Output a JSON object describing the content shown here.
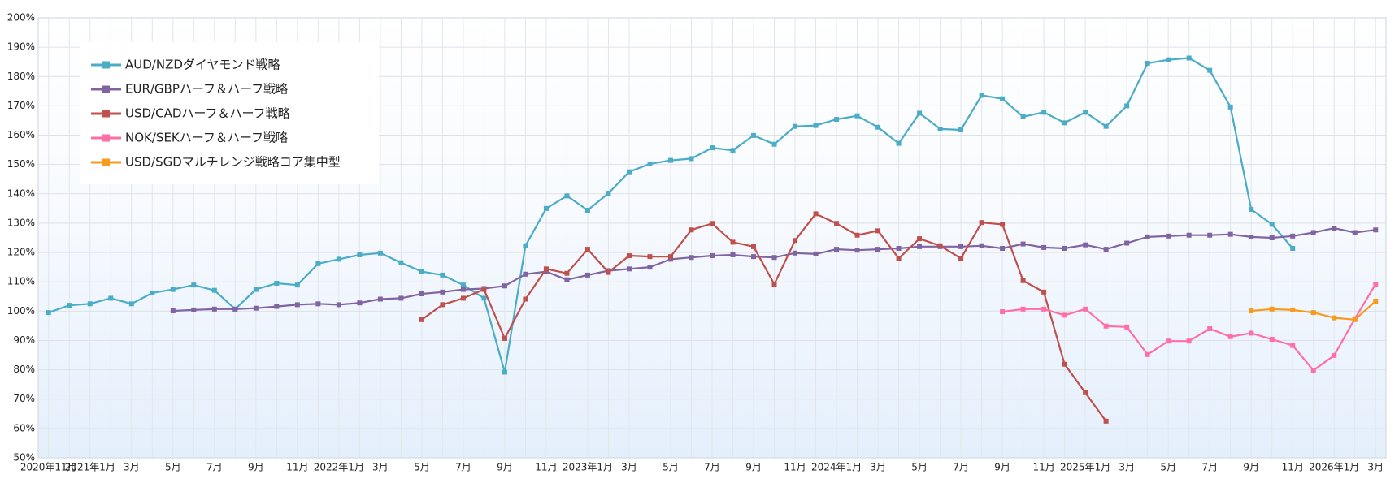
{
  "chart_data": {
    "type": "line",
    "categories": [
      "2020年11月",
      null,
      "2021年1月",
      null,
      "3月",
      null,
      "5月",
      null,
      "7月",
      null,
      "9月",
      null,
      "11月",
      null,
      "2022年1月",
      null,
      "3月",
      null,
      "5月",
      null,
      "7月",
      null,
      "9月",
      null,
      "11月",
      null,
      "2023年1月",
      null,
      "3月",
      null,
      "5月",
      null,
      "7月",
      null,
      "9月",
      null,
      "11月",
      null,
      "2024年1月",
      null,
      "3月",
      null,
      "5月",
      null,
      "7月",
      null,
      "9月",
      null,
      "11月",
      null,
      "2025年1月",
      null,
      "3月",
      null,
      "5月",
      null,
      "7月",
      null,
      "9月",
      null,
      "11月",
      null,
      "2026年1月",
      null,
      "3月"
    ],
    "series": [
      {
        "name": "AUD/NZDダイヤモンド戦略",
        "color": "#4bacc6",
        "values": [
          99.5,
          102,
          102.5,
          104.4,
          102.5,
          106.2,
          107.4,
          108.9,
          107.1,
          100.7,
          107.4,
          109.5,
          108.9,
          116.2,
          117.7,
          119.2,
          119.8,
          116.5,
          113.5,
          112.3,
          108.9,
          104.4,
          79.2,
          122.3,
          135,
          139.3,
          134.4,
          140.2,
          147.5,
          150.2,
          151.4,
          152,
          155.7,
          154.8,
          159.9,
          156.9,
          163,
          163.3,
          165.4,
          166.6,
          162.7,
          157.2,
          167.5,
          162.1,
          161.8,
          173.6,
          172.4,
          166.3,
          167.8,
          164.2,
          167.8,
          163,
          170,
          184.5,
          185.7,
          186.3,
          182.1,
          169.6,
          134.7,
          129.6,
          121.4,
          null,
          null,
          null,
          null
        ]
      },
      {
        "name": "EUR/GBPハーフ＆ハーフ戦略",
        "color": "#8064a2",
        "values": [
          null,
          null,
          null,
          null,
          null,
          null,
          100.1,
          100.4,
          100.7,
          100.7,
          101,
          101.6,
          102.2,
          102.5,
          102.2,
          102.8,
          104.1,
          104.4,
          105.9,
          106.5,
          107.4,
          107.7,
          108.6,
          112.6,
          113.5,
          110.7,
          112.3,
          113.8,
          114.4,
          115,
          117.7,
          118.3,
          118.9,
          119.2,
          118.6,
          118.3,
          119.8,
          119.5,
          121.1,
          120.8,
          121.1,
          121.4,
          122,
          122,
          122,
          122.3,
          121.4,
          122.9,
          121.7,
          121.4,
          122.6,
          121.1,
          123.2,
          125.3,
          125.6,
          125.9,
          125.9,
          126.2,
          125.3,
          125,
          125.6,
          126.8,
          128.3,
          126.8,
          127.7
        ]
      },
      {
        "name": "USD/CADハーフ＆ハーフ戦略",
        "color": "#c0504d",
        "values": [
          null,
          null,
          null,
          null,
          null,
          null,
          null,
          null,
          null,
          null,
          null,
          null,
          null,
          null,
          null,
          null,
          null,
          null,
          97.1,
          102.2,
          104.4,
          107.4,
          90.7,
          104.1,
          114.4,
          112.9,
          121.1,
          113.2,
          118.9,
          118.6,
          118.6,
          127.7,
          129.9,
          123.5,
          122,
          109.2,
          124.1,
          133.2,
          129.9,
          125.9,
          127.4,
          118,
          124.7,
          122.3,
          118,
          130.2,
          129.6,
          110.4,
          106.5,
          81.9,
          72.2,
          62.5,
          null,
          null,
          null,
          null,
          null,
          null,
          null,
          null,
          null,
          null,
          null,
          null,
          null
        ]
      },
      {
        "name": "NOK/SEKハーフ＆ハーフ戦略",
        "color": "#ff6ea5",
        "values": [
          null,
          null,
          null,
          null,
          null,
          null,
          null,
          null,
          null,
          null,
          null,
          null,
          null,
          null,
          null,
          null,
          null,
          null,
          null,
          null,
          null,
          null,
          null,
          null,
          null,
          null,
          null,
          null,
          null,
          null,
          null,
          null,
          null,
          null,
          null,
          null,
          null,
          null,
          null,
          null,
          null,
          null,
          null,
          null,
          null,
          null,
          99.8,
          100.7,
          100.7,
          98.6,
          100.7,
          94.9,
          94.6,
          85.2,
          89.8,
          89.8,
          94,
          91.3,
          92.5,
          90.4,
          88.3,
          79.8,
          84.9,
          97.4,
          109.2
        ]
      },
      {
        "name": "USD/SGDマルチレンジ戦略コア集中型",
        "color": "#f79a1e",
        "values": [
          null,
          null,
          null,
          null,
          null,
          null,
          null,
          null,
          null,
          null,
          null,
          null,
          null,
          null,
          null,
          null,
          null,
          null,
          null,
          null,
          null,
          null,
          null,
          null,
          null,
          null,
          null,
          null,
          null,
          null,
          null,
          null,
          null,
          null,
          null,
          null,
          null,
          null,
          null,
          null,
          null,
          null,
          null,
          null,
          null,
          null,
          null,
          null,
          null,
          null,
          null,
          null,
          null,
          null,
          null,
          null,
          null,
          null,
          100.1,
          100.7,
          100.4,
          99.5,
          97.7,
          97.1,
          103.4
        ]
      }
    ],
    "ylim": [
      50,
      200
    ],
    "yticks": [
      {
        "value": 50,
        "label": "50%"
      },
      {
        "value": 60,
        "label": "60%"
      },
      {
        "value": 70,
        "label": "70%"
      },
      {
        "value": 80,
        "label": "80%"
      },
      {
        "value": 90,
        "label": "90%"
      },
      {
        "value": 100,
        "label": "100%"
      },
      {
        "value": 110,
        "label": "110%"
      },
      {
        "value": 120,
        "label": "120%"
      },
      {
        "value": 130,
        "label": "130%"
      },
      {
        "value": 140,
        "label": "140%"
      },
      {
        "value": 150,
        "label": "150%"
      },
      {
        "value": 160,
        "label": "160%"
      },
      {
        "value": 170,
        "label": "170%"
      },
      {
        "value": 180,
        "label": "180%"
      },
      {
        "value": 190,
        "label": "190%"
      },
      {
        "value": 200,
        "label": "200%"
      }
    ],
    "grid": true,
    "legend": "upper left"
  }
}
